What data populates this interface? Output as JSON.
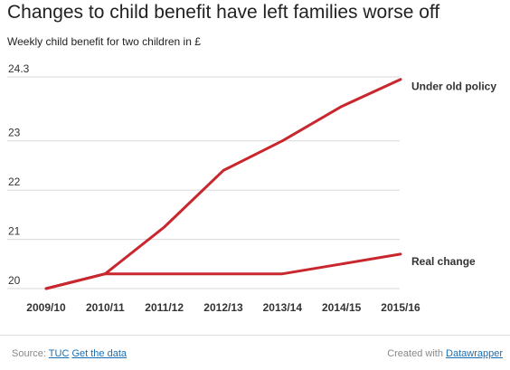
{
  "title": "Changes to child benefit have left families worse off",
  "subtitle": "Weekly child benefit for two children in £",
  "chart_data": {
    "type": "line",
    "categories": [
      "2009/10",
      "2010/11",
      "2011/12",
      "2012/13",
      "2013/14",
      "2014/15",
      "2015/16"
    ],
    "series": [
      {
        "name": "Under old policy",
        "values": [
          20.0,
          20.3,
          21.25,
          22.4,
          23.0,
          23.7,
          24.25
        ]
      },
      {
        "name": "Real change",
        "values": [
          20.0,
          20.3,
          20.3,
          20.3,
          20.3,
          20.5,
          20.7
        ]
      }
    ],
    "y_ticks": [
      "24.3",
      "23",
      "22",
      "21",
      "20"
    ],
    "ylim": [
      20,
      24.3
    ],
    "grid": true,
    "line_color": "#c8272e",
    "grid_color": "#d8d8d8"
  },
  "footer": {
    "source_prefix": "Source:",
    "source_link": "TUC",
    "get_data": "Get the data",
    "created_prefix": "Created with",
    "created_link": "Datawrapper"
  }
}
